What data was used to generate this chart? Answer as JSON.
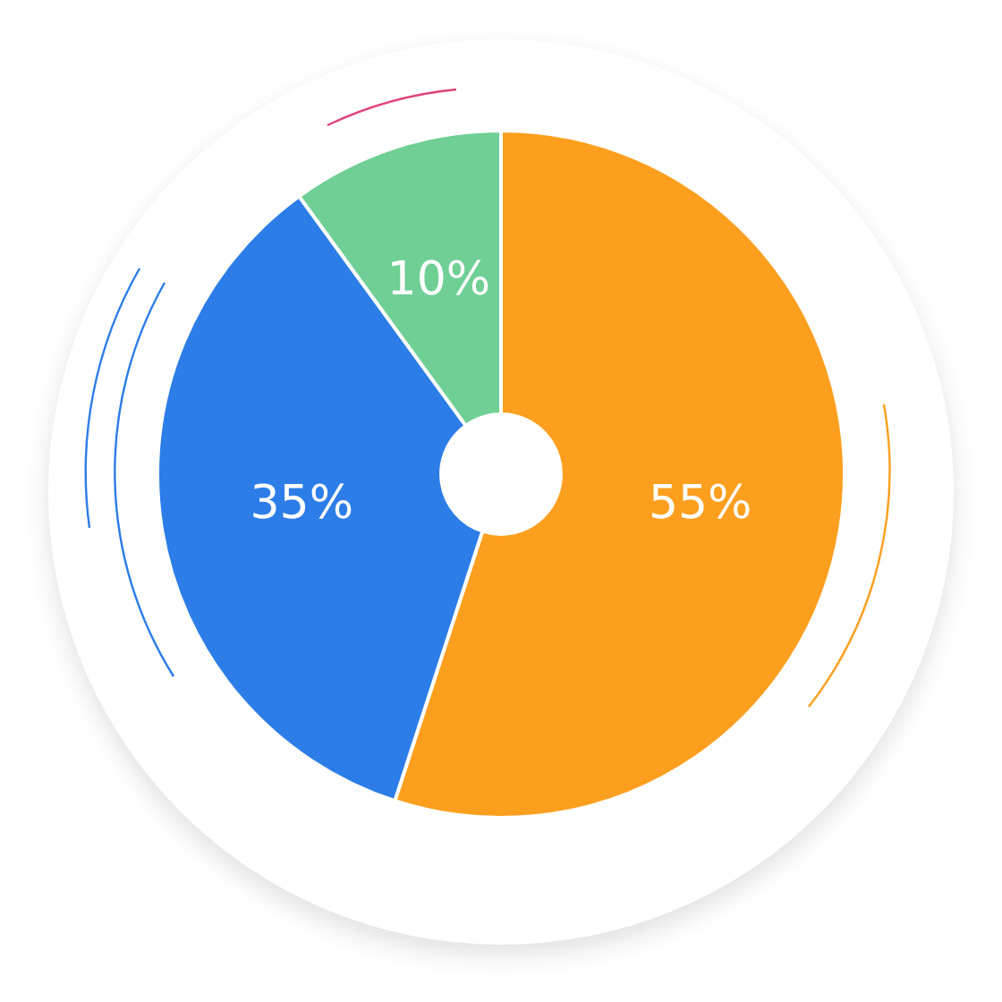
{
  "chart_data": {
    "type": "donut",
    "categories": [
      null,
      null,
      null
    ],
    "values": [
      55,
      35,
      10
    ],
    "colors": [
      "#fd9f1e",
      "#2c7de8",
      "#6fcf95"
    ],
    "value_labels": [
      "55%",
      "35%",
      "10%"
    ],
    "legend": false
  }
}
